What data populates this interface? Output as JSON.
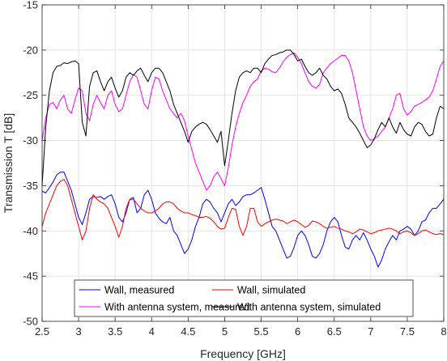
{
  "chart_data": {
    "type": "line",
    "title": "",
    "xlabel": "Frequency [GHz]",
    "ylabel": "Transmission T [dB]",
    "xlim": [
      2.5,
      8
    ],
    "ylim": [
      -50,
      -15
    ],
    "xticks": [
      2.5,
      3,
      3.5,
      4,
      4.5,
      5,
      5.5,
      6,
      6.5,
      7,
      7.5,
      8
    ],
    "xtick_labels": [
      "2.5",
      "3",
      "3.5",
      "4",
      "4.5",
      "5",
      "5.5",
      "6",
      "6.5",
      "7",
      "7.5",
      "8"
    ],
    "yticks": [
      -50,
      -45,
      -40,
      -35,
      -30,
      -25,
      -20,
      -15
    ],
    "ytick_labels": [
      "-50",
      "-45",
      "-40",
      "-35",
      "-30",
      "-25",
      "-20",
      "-15"
    ],
    "grid": true,
    "legend_position": "bottom-center",
    "series": [
      {
        "name": "Wall, measured",
        "color": "#0000ff",
        "x": [
          2.5,
          2.55,
          2.6,
          2.65,
          2.7,
          2.75,
          2.8,
          2.85,
          2.9,
          2.95,
          3.0,
          3.05,
          3.1,
          3.15,
          3.2,
          3.25,
          3.3,
          3.35,
          3.4,
          3.45,
          3.5,
          3.55,
          3.6,
          3.65,
          3.7,
          3.75,
          3.8,
          3.85,
          3.9,
          3.95,
          4.0,
          4.05,
          4.1,
          4.15,
          4.2,
          4.25,
          4.3,
          4.35,
          4.4,
          4.45,
          4.5,
          4.55,
          4.6,
          4.65,
          4.7,
          4.75,
          4.8,
          4.85,
          4.9,
          4.95,
          5.0,
          5.05,
          5.1,
          5.15,
          5.2,
          5.25,
          5.3,
          5.35,
          5.4,
          5.45,
          5.5,
          5.55,
          5.6,
          5.65,
          5.7,
          5.75,
          5.8,
          5.85,
          5.9,
          5.95,
          6.0,
          6.05,
          6.1,
          6.15,
          6.2,
          6.25,
          6.3,
          6.35,
          6.4,
          6.45,
          6.5,
          6.55,
          6.6,
          6.65,
          6.7,
          6.75,
          6.8,
          6.85,
          6.9,
          6.95,
          7.0,
          7.05,
          7.1,
          7.15,
          7.2,
          7.25,
          7.3,
          7.35,
          7.4,
          7.45,
          7.5,
          7.55,
          7.6,
          7.65,
          7.7,
          7.75,
          7.8,
          7.85,
          7.9,
          7.95,
          8.0
        ],
        "y": [
          -35.6,
          -35.8,
          -35.2,
          -34.6,
          -33.8,
          -33.5,
          -33.5,
          -34.5,
          -35.5,
          -37.0,
          -38.5,
          -39.3,
          -38.0,
          -36.5,
          -36.2,
          -36.3,
          -36.2,
          -36.5,
          -36.2,
          -36.0,
          -37.0,
          -38.5,
          -39.0,
          -38.0,
          -36.5,
          -36.3,
          -38.0,
          -37.5,
          -36.0,
          -35.5,
          -36.5,
          -38.0,
          -38.6,
          -39.0,
          -39.2,
          -38.5,
          -40.0,
          -40.5,
          -41.5,
          -42.5,
          -42.0,
          -41.0,
          -39.5,
          -38.5,
          -37.0,
          -36.5,
          -36.8,
          -37.5,
          -38.0,
          -39.0,
          -38.0,
          -37.0,
          -36.5,
          -37.2,
          -36.8,
          -36.2,
          -36.0,
          -36.0,
          -35.8,
          -35.5,
          -35.2,
          -36.5,
          -38.0,
          -39.5,
          -40.0,
          -41.0,
          -42.0,
          -43.0,
          -42.8,
          -41.8,
          -40.5,
          -40.0,
          -40.5,
          -41.5,
          -42.8,
          -43.0,
          -42.5,
          -41.5,
          -40.0,
          -39.0,
          -38.5,
          -39.0,
          -40.5,
          -41.8,
          -42.0,
          -41.0,
          -40.5,
          -41.0,
          -40.2,
          -41.0,
          -42.0,
          -42.8,
          -44.0,
          -43.2,
          -42.0,
          -41.2,
          -40.5,
          -41.0,
          -40.0,
          -39.8,
          -39.5,
          -39.8,
          -40.5,
          -40.0,
          -39.0,
          -38.8,
          -38.0,
          -37.5,
          -37.5,
          -37.0,
          -36.5
        ]
      },
      {
        "name": "Wall, simulated",
        "color": "#ff0000",
        "x": [
          2.5,
          2.55,
          2.6,
          2.65,
          2.7,
          2.75,
          2.8,
          2.85,
          2.9,
          2.95,
          3.0,
          3.05,
          3.1,
          3.15,
          3.2,
          3.25,
          3.3,
          3.35,
          3.4,
          3.45,
          3.5,
          3.55,
          3.6,
          3.65,
          3.7,
          3.75,
          3.8,
          3.85,
          3.9,
          3.95,
          4.0,
          4.05,
          4.1,
          4.15,
          4.2,
          4.25,
          4.3,
          4.35,
          4.4,
          4.45,
          4.5,
          4.55,
          4.6,
          4.65,
          4.7,
          4.75,
          4.8,
          4.85,
          4.9,
          4.95,
          5.0,
          5.05,
          5.1,
          5.15,
          5.2,
          5.25,
          5.3,
          5.35,
          5.4,
          5.45,
          5.5,
          5.55,
          5.6,
          5.65,
          5.7,
          5.75,
          5.8,
          5.85,
          5.9,
          5.95,
          6.0,
          6.05,
          6.1,
          6.15,
          6.2,
          6.25,
          6.3,
          6.35,
          6.4,
          6.45,
          6.5,
          6.55,
          6.6,
          6.65,
          6.7,
          6.75,
          6.8,
          6.85,
          6.9,
          6.95,
          7.0,
          7.05,
          7.1,
          7.15,
          7.2,
          7.25,
          7.3,
          7.35,
          7.4,
          7.45,
          7.5,
          7.55,
          7.6,
          7.65,
          7.7,
          7.75,
          7.8,
          7.85,
          7.9,
          7.95,
          8.0
        ],
        "y": [
          -39.5,
          -38.0,
          -37.0,
          -36.0,
          -35.0,
          -34.5,
          -34.3,
          -35.0,
          -36.5,
          -38.0,
          -39.5,
          -41.0,
          -40.0,
          -37.5,
          -36.0,
          -36.5,
          -36.8,
          -37.0,
          -37.5,
          -38.5,
          -39.5,
          -40.7,
          -39.5,
          -37.5,
          -36.5,
          -36.5,
          -37.0,
          -37.5,
          -37.8,
          -38.0,
          -38.0,
          -37.8,
          -37.5,
          -37.0,
          -36.8,
          -36.8,
          -37.0,
          -37.5,
          -37.8,
          -38.0,
          -38.0,
          -38.2,
          -38.3,
          -38.5,
          -38.5,
          -38.4,
          -38.6,
          -39.0,
          -39.5,
          -39.8,
          -39.7,
          -38.5,
          -37.5,
          -37.6,
          -39.5,
          -40.5,
          -39.5,
          -37.5,
          -37.5,
          -39.0,
          -39.5,
          -39.2,
          -39.0,
          -38.8,
          -38.7,
          -38.8,
          -38.9,
          -39.2,
          -39.0,
          -38.8,
          -39.0,
          -39.3,
          -39.6,
          -39.4,
          -38.9,
          -39.0,
          -39.2,
          -39.5,
          -39.7,
          -39.6,
          -39.5,
          -39.7,
          -39.8,
          -40.0,
          -40.1,
          -40.3,
          -40.1,
          -39.8,
          -39.9,
          -40.1,
          -40.3,
          -40.2,
          -40.0,
          -39.9,
          -39.8,
          -39.7,
          -39.8,
          -40.0,
          -40.3,
          -40.1,
          -40.0,
          -40.2,
          -40.5,
          -40.3,
          -40.0,
          -39.9,
          -40.1,
          -40.3,
          -40.4,
          -40.3,
          -40.4
        ]
      },
      {
        "name": "With antenna system, measured",
        "color": "#ff00ff",
        "x": [
          2.5,
          2.55,
          2.6,
          2.65,
          2.7,
          2.75,
          2.8,
          2.85,
          2.9,
          2.95,
          3.0,
          3.05,
          3.1,
          3.15,
          3.2,
          3.25,
          3.3,
          3.35,
          3.4,
          3.45,
          3.5,
          3.55,
          3.6,
          3.65,
          3.7,
          3.75,
          3.8,
          3.85,
          3.9,
          3.95,
          4.0,
          4.05,
          4.1,
          4.15,
          4.2,
          4.25,
          4.3,
          4.35,
          4.4,
          4.45,
          4.5,
          4.55,
          4.6,
          4.65,
          4.7,
          4.75,
          4.8,
          4.85,
          4.9,
          4.95,
          5.0,
          5.05,
          5.1,
          5.15,
          5.2,
          5.25,
          5.3,
          5.35,
          5.4,
          5.45,
          5.5,
          5.55,
          5.6,
          5.65,
          5.7,
          5.75,
          5.8,
          5.85,
          5.9,
          5.95,
          6.0,
          6.05,
          6.1,
          6.15,
          6.2,
          6.25,
          6.3,
          6.35,
          6.4,
          6.45,
          6.5,
          6.55,
          6.6,
          6.65,
          6.7,
          6.75,
          6.8,
          6.85,
          6.9,
          6.95,
          7.0,
          7.05,
          7.1,
          7.15,
          7.2,
          7.25,
          7.3,
          7.35,
          7.4,
          7.45,
          7.5,
          7.55,
          7.6,
          7.65,
          7.7,
          7.75,
          7.8,
          7.85,
          7.9,
          7.95,
          8.0
        ],
        "y": [
          -30.0,
          -27.5,
          -26.0,
          -25.8,
          -26.5,
          -25.5,
          -25.0,
          -26.5,
          -27.0,
          -25.5,
          -24.2,
          -24.5,
          -27.0,
          -27.8,
          -26.0,
          -25.0,
          -25.8,
          -26.5,
          -25.0,
          -24.5,
          -26.0,
          -26.8,
          -26.5,
          -25.0,
          -23.5,
          -22.7,
          -23.0,
          -24.5,
          -26.0,
          -26.5,
          -24.5,
          -23.0,
          -23.2,
          -24.5,
          -25.5,
          -26.5,
          -27.0,
          -27.5,
          -27.0,
          -27.8,
          -29.5,
          -31.0,
          -32.5,
          -33.5,
          -34.5,
          -35.5,
          -35.0,
          -34.0,
          -33.5,
          -34.2,
          -35.0,
          -33.0,
          -30.5,
          -28.5,
          -27.0,
          -25.8,
          -25.0,
          -24.0,
          -23.5,
          -23.2,
          -22.3,
          -22.0,
          -22.1,
          -22.4,
          -22.5,
          -22.0,
          -21.3,
          -20.8,
          -20.5,
          -20.3,
          -20.8,
          -21.5,
          -22.5,
          -23.5,
          -24.0,
          -24.2,
          -23.8,
          -22.5,
          -22.0,
          -21.5,
          -21.2,
          -20.9,
          -20.6,
          -20.6,
          -21.2,
          -22.5,
          -24.5,
          -26.5,
          -28.5,
          -29.5,
          -30.0,
          -29.8,
          -29.5,
          -29.0,
          -28.5,
          -27.5,
          -26.5,
          -25.0,
          -24.8,
          -26.5,
          -27.2,
          -26.8,
          -26.2,
          -26.0,
          -25.8,
          -25.5,
          -25.2,
          -24.5,
          -23.2,
          -21.8,
          -21.2
        ]
      },
      {
        "name": "With antenna system, simulated",
        "color": "#000000",
        "x": [
          2.5,
          2.55,
          2.6,
          2.65,
          2.7,
          2.75,
          2.8,
          2.85,
          2.9,
          2.95,
          3.0,
          3.05,
          3.1,
          3.15,
          3.2,
          3.25,
          3.3,
          3.35,
          3.4,
          3.45,
          3.5,
          3.55,
          3.6,
          3.65,
          3.7,
          3.75,
          3.8,
          3.85,
          3.9,
          3.95,
          4.0,
          4.05,
          4.1,
          4.15,
          4.2,
          4.25,
          4.3,
          4.35,
          4.4,
          4.45,
          4.5,
          4.55,
          4.6,
          4.65,
          4.7,
          4.75,
          4.8,
          4.85,
          4.9,
          4.95,
          5.0,
          5.05,
          5.1,
          5.15,
          5.2,
          5.25,
          5.3,
          5.35,
          5.4,
          5.45,
          5.5,
          5.55,
          5.6,
          5.65,
          5.7,
          5.75,
          5.8,
          5.85,
          5.9,
          5.95,
          6.0,
          6.05,
          6.1,
          6.15,
          6.2,
          6.25,
          6.3,
          6.35,
          6.4,
          6.45,
          6.5,
          6.55,
          6.6,
          6.65,
          6.7,
          6.75,
          6.8,
          6.85,
          6.9,
          6.95,
          7.0,
          7.05,
          7.1,
          7.15,
          7.2,
          7.25,
          7.3,
          7.35,
          7.4,
          7.45,
          7.5,
          7.55,
          7.6,
          7.65,
          7.7,
          7.75,
          7.8,
          7.85,
          7.9,
          7.95,
          8.0
        ],
        "y": [
          -35.0,
          -28.5,
          -24.5,
          -22.5,
          -21.8,
          -21.7,
          -21.4,
          -21.5,
          -21.3,
          -21.2,
          -21.5,
          -28.0,
          -29.5,
          -24.0,
          -22.5,
          -22.3,
          -23.5,
          -24.5,
          -23.5,
          -23.0,
          -24.2,
          -25.2,
          -24.5,
          -23.0,
          -22.5,
          -22.8,
          -22.3,
          -22.0,
          -22.8,
          -23.5,
          -22.5,
          -22.0,
          -22.0,
          -22.5,
          -23.5,
          -24.5,
          -26.0,
          -27.0,
          -28.0,
          -29.0,
          -30.2,
          -29.0,
          -28.5,
          -28.2,
          -28.0,
          -28.2,
          -28.8,
          -29.5,
          -30.2,
          -29.0,
          -32.8,
          -30.0,
          -27.0,
          -24.5,
          -23.0,
          -22.5,
          -22.3,
          -22.5,
          -22.0,
          -22.0,
          -22.5,
          -21.5,
          -21.0,
          -20.6,
          -20.5,
          -20.3,
          -20.2,
          -20.0,
          -20.0,
          -20.5,
          -21.2,
          -21.0,
          -21.8,
          -22.5,
          -22.8,
          -22.5,
          -22.0,
          -22.8,
          -23.2,
          -24.0,
          -24.5,
          -24.3,
          -24.8,
          -26.0,
          -27.5,
          -28.0,
          -28.5,
          -29.2,
          -30.0,
          -30.8,
          -30.5,
          -29.8,
          -28.8,
          -28.0,
          -28.5,
          -27.5,
          -28.5,
          -29.2,
          -28.0,
          -28.8,
          -29.3,
          -29.5,
          -28.5,
          -28.0,
          -28.2,
          -29.0,
          -29.5,
          -29.3,
          -27.5,
          -26.2,
          -26.5
        ]
      }
    ]
  }
}
